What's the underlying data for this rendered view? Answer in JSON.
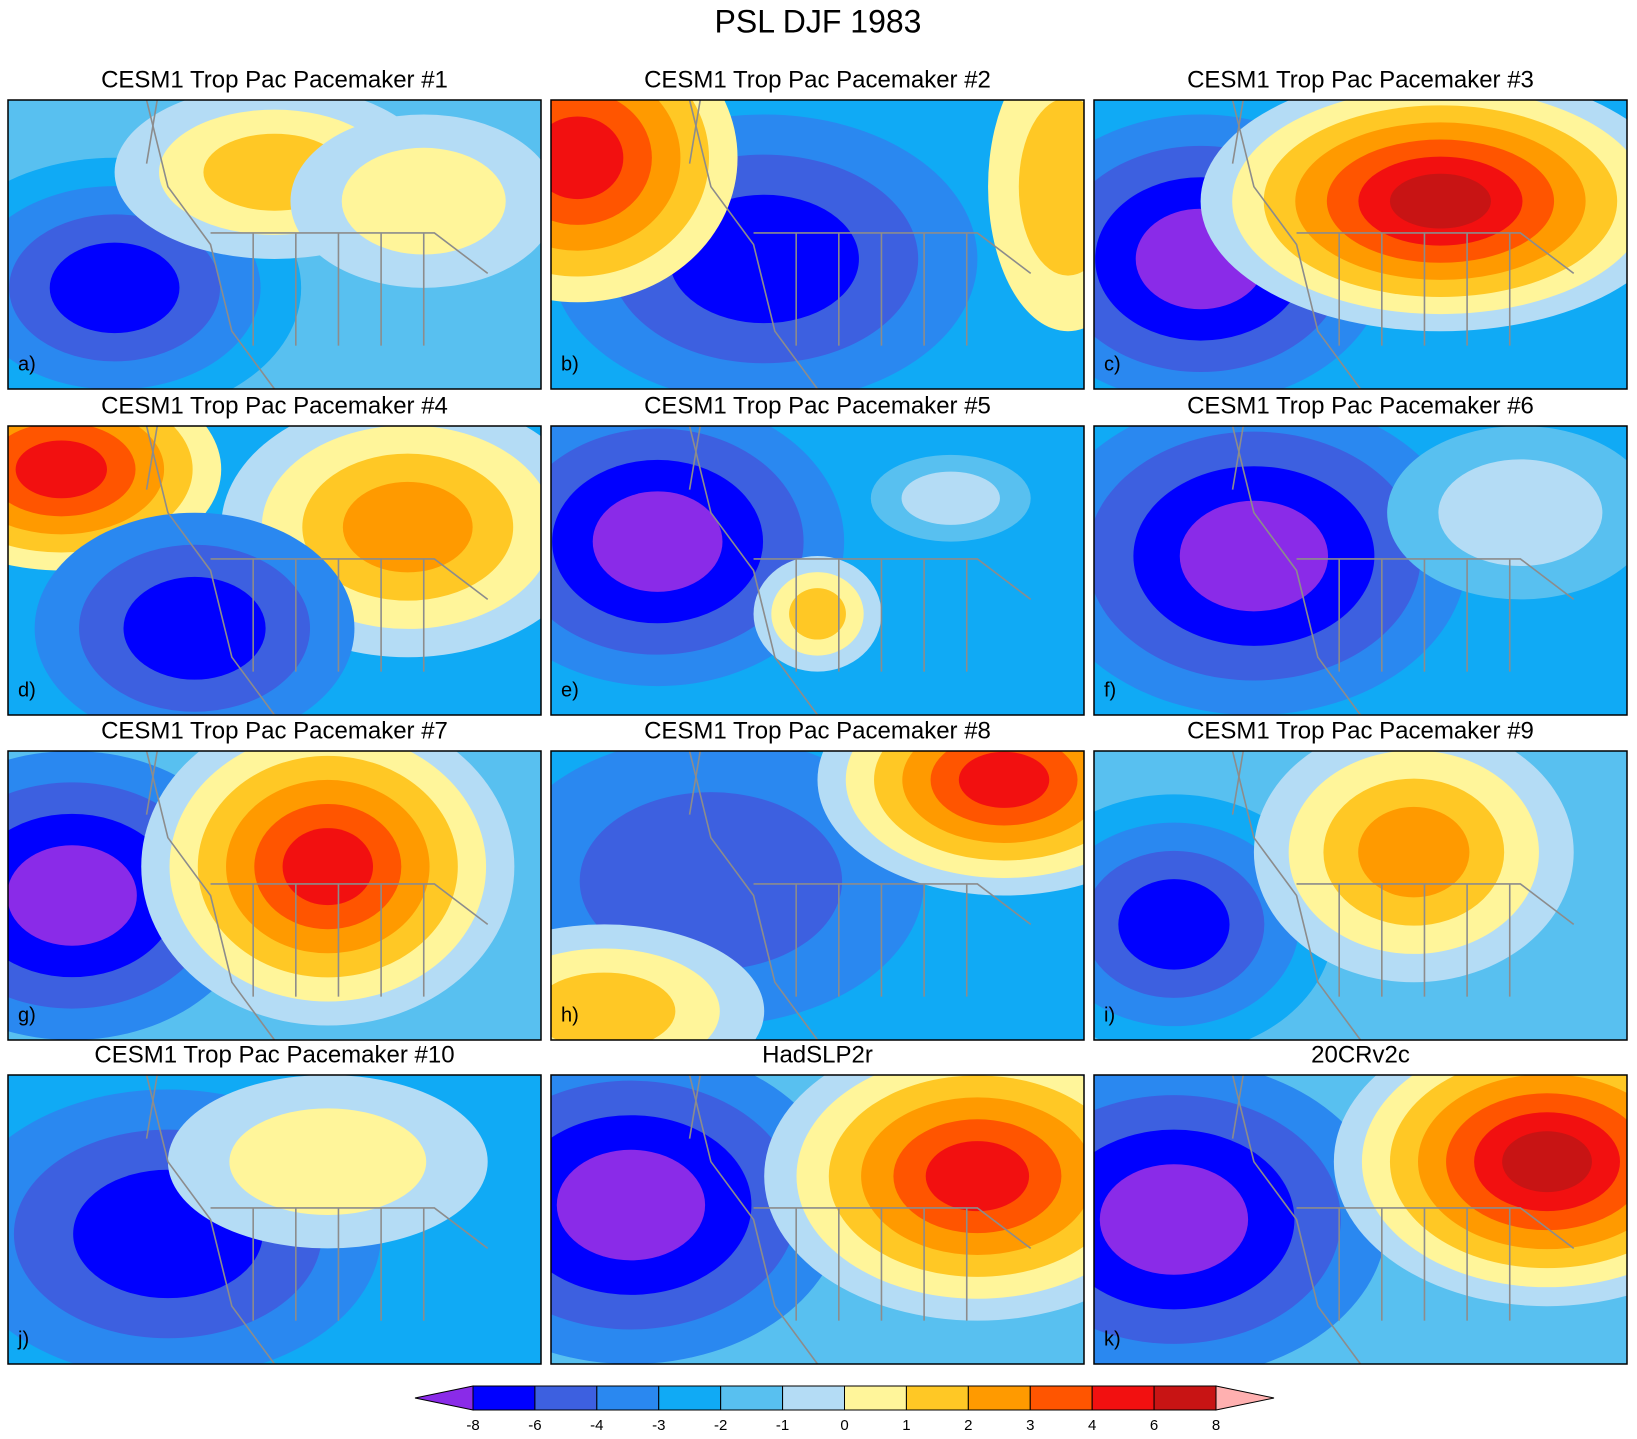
{
  "title": "PSL DJF 1983",
  "panels": [
    {
      "title": "CESM1 Trop Pac Pacemaker #1",
      "label": "a)"
    },
    {
      "title": "CESM1 Trop Pac Pacemaker #2",
      "label": "b)"
    },
    {
      "title": "CESM1 Trop Pac Pacemaker #3",
      "label": "c)"
    },
    {
      "title": "CESM1 Trop Pac Pacemaker #4",
      "label": "d)"
    },
    {
      "title": "CESM1 Trop Pac Pacemaker #5",
      "label": "e)"
    },
    {
      "title": "CESM1 Trop Pac Pacemaker #6",
      "label": "f)"
    },
    {
      "title": "CESM1 Trop Pac Pacemaker #7",
      "label": "g)"
    },
    {
      "title": "CESM1 Trop Pac Pacemaker #8",
      "label": "h)"
    },
    {
      "title": "CESM1 Trop Pac Pacemaker #9",
      "label": "i)"
    },
    {
      "title": "CESM1 Trop Pac Pacemaker #10",
      "label": "j)"
    },
    {
      "title": "HadSLP2r"
    },
    {
      "title": "20CRv2c",
      "label": "k)"
    }
  ],
  "colorbar": {
    "levels": [
      -8,
      -6,
      -4,
      -3,
      -2,
      -1,
      0,
      1,
      2,
      3,
      4,
      6,
      8
    ],
    "colors": [
      "#8a2be8",
      "#0000ff",
      "#3d60e0",
      "#2a88f0",
      "#10aaf5",
      "#58c0f0",
      "#b4dcf5",
      "#fff59a",
      "#ffc825",
      "#ff9a00",
      "#ff5500",
      "#f21010",
      "#c81414",
      "#ffb0b0"
    ]
  }
}
